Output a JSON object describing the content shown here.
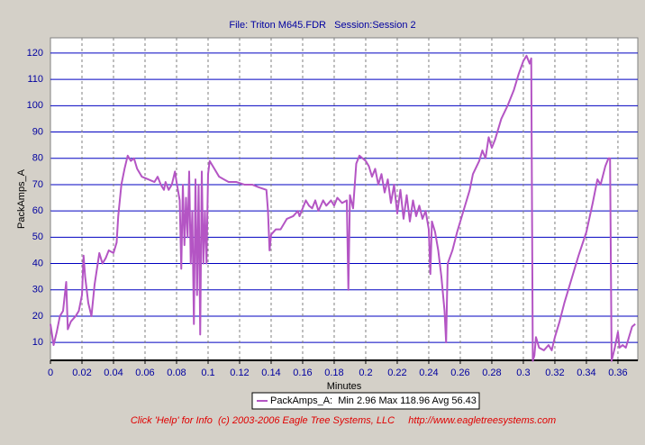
{
  "chart_data": {
    "type": "line",
    "title": "File: Triton M645.FDR   Session:Session 2",
    "x_label": "Minutes",
    "y_label": "PackAmps_A",
    "footer": "Click 'Help' for Info  (c) 2003-2006 Eagle Tree Systems, LLC     http://www.eagletreesystems.com",
    "xlim": [
      0,
      0.3726
    ],
    "ylim": [
      3.2,
      125.8
    ],
    "xticks": [
      0,
      0.02,
      0.04,
      0.06,
      0.08,
      0.1,
      0.12,
      0.14,
      0.16,
      0.18,
      0.2,
      0.22,
      0.24,
      0.26,
      0.28,
      0.3,
      0.32,
      0.34,
      0.36
    ],
    "yticks": [
      10,
      20,
      30,
      40,
      50,
      60,
      70,
      80,
      90,
      100,
      110,
      120
    ],
    "grid": true,
    "x": [
      0,
      0.002,
      0.004,
      0.006,
      0.008,
      0.01,
      0.011,
      0.013,
      0.016,
      0.018,
      0.02,
      0.021,
      0.022,
      0.024,
      0.026,
      0.028,
      0.03,
      0.031,
      0.033,
      0.035,
      0.037,
      0.04,
      0.042,
      0.043,
      0.045,
      0.047,
      0.049,
      0.051,
      0.053,
      0.055,
      0.058,
      0.062,
      0.066,
      0.068,
      0.07,
      0.072,
      0.073,
      0.075,
      0.077,
      0.079,
      0.08,
      0.082,
      0.083,
      0.084,
      0.085,
      0.086,
      0.087,
      0.088,
      0.089,
      0.09,
      0.091,
      0.092,
      0.093,
      0.094,
      0.095,
      0.096,
      0.097,
      0.098,
      0.099,
      0.1,
      0.101,
      0.104,
      0.107,
      0.11,
      0.113,
      0.118,
      0.123,
      0.128,
      0.132,
      0.137,
      0.138,
      0.139,
      0.14,
      0.143,
      0.146,
      0.148,
      0.15,
      0.154,
      0.157,
      0.158,
      0.16,
      0.162,
      0.164,
      0.166,
      0.168,
      0.17,
      0.173,
      0.175,
      0.178,
      0.18,
      0.182,
      0.185,
      0.188,
      0.189,
      0.19,
      0.192,
      0.194,
      0.196,
      0.198,
      0.2,
      0.202,
      0.204,
      0.206,
      0.208,
      0.21,
      0.212,
      0.214,
      0.216,
      0.218,
      0.22,
      0.222,
      0.224,
      0.226,
      0.228,
      0.23,
      0.232,
      0.234,
      0.236,
      0.238,
      0.24,
      0.241,
      0.242,
      0.244,
      0.246,
      0.248,
      0.25,
      0.251,
      0.252,
      0.255,
      0.258,
      0.262,
      0.266,
      0.268,
      0.272,
      0.274,
      0.276,
      0.278,
      0.28,
      0.282,
      0.286,
      0.29,
      0.294,
      0.297,
      0.3,
      0.302,
      0.304,
      0.305,
      0.306,
      0.307,
      0.308,
      0.31,
      0.313,
      0.316,
      0.318,
      0.32,
      0.323,
      0.326,
      0.33,
      0.335,
      0.34,
      0.344,
      0.347,
      0.349,
      0.352,
      0.354,
      0.355,
      0.356,
      0.358,
      0.36,
      0.361,
      0.363,
      0.365,
      0.367,
      0.369,
      0.371
    ],
    "series": [
      {
        "name": "PackAmps_A:  Min 2.96 Max 118.96 Avg 56.43",
        "color": "#b455c4",
        "values": [
          17,
          9,
          14,
          20,
          22,
          33,
          15,
          18,
          20,
          22,
          28,
          43,
          35,
          25,
          20,
          32,
          40,
          44,
          40,
          42,
          45,
          44,
          48,
          58,
          70,
          76,
          81,
          79,
          80,
          76,
          73,
          72,
          71,
          73,
          70,
          68,
          71,
          68,
          70,
          75,
          71,
          64,
          38,
          70,
          47,
          65,
          50,
          75,
          40,
          60,
          17,
          72,
          28,
          70,
          13,
          75,
          40,
          60,
          40,
          74,
          79,
          76,
          73,
          72,
          71,
          71,
          70,
          70,
          69,
          68,
          60,
          45,
          51,
          53,
          53,
          55,
          57,
          58,
          60,
          58,
          61,
          64,
          62,
          61,
          64,
          60,
          64,
          62,
          64,
          62,
          65,
          63,
          64,
          30,
          66,
          61,
          78,
          81,
          80,
          79,
          77,
          73,
          76,
          70,
          74,
          67,
          72,
          63,
          70,
          59,
          68,
          57,
          66,
          56,
          64,
          58,
          62,
          57,
          60,
          53,
          36,
          56,
          52,
          45,
          35,
          22,
          10,
          40,
          45,
          52,
          60,
          68,
          74,
          79,
          83,
          80,
          88,
          84,
          87,
          95,
          100,
          106,
          112,
          117,
          119,
          116,
          118,
          3,
          5,
          12,
          8,
          7,
          9,
          7,
          12,
          18,
          25,
          33,
          43,
          52,
          63,
          72,
          70,
          77,
          80,
          80,
          3,
          8,
          14,
          8,
          9,
          8,
          12,
          16,
          17
        ]
      }
    ]
  }
}
